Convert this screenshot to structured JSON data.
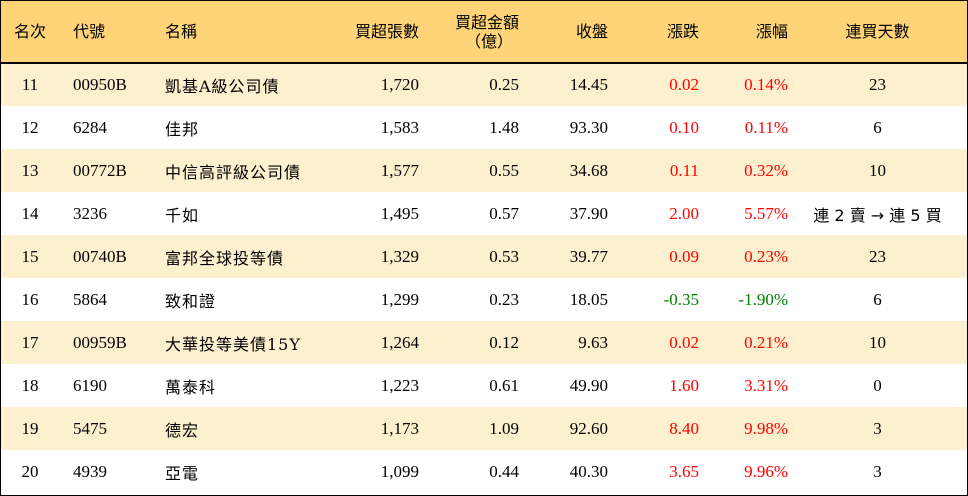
{
  "headers": {
    "rank": "名次",
    "code": "代號",
    "name": "名稱",
    "net_buy_lots": "買超張數",
    "net_buy_amount_line1": "買超金額",
    "net_buy_amount_line2": "（億）",
    "close": "收盤",
    "change": "漲跌",
    "change_pct": "漲幅",
    "consecutive_days": "連買天數"
  },
  "colors": {
    "header_bg": "#FFD478",
    "stripe_bg": "#FDF0CE",
    "up": "#FF0000",
    "down": "#008000"
  },
  "rows": [
    {
      "rank": "11",
      "code": "00950B",
      "name": "凱基A級公司債",
      "lots": "1,720",
      "amount": "0.25",
      "close": "14.45",
      "change": "0.02",
      "pct": "0.14%",
      "days": "23",
      "dir": "up"
    },
    {
      "rank": "12",
      "code": "6284",
      "name": "佳邦",
      "lots": "1,583",
      "amount": "1.48",
      "close": "93.30",
      "change": "0.10",
      "pct": "0.11%",
      "days": "6",
      "dir": "up"
    },
    {
      "rank": "13",
      "code": "00772B",
      "name": "中信高評級公司債",
      "lots": "1,577",
      "amount": "0.55",
      "close": "34.68",
      "change": "0.11",
      "pct": "0.32%",
      "days": "10",
      "dir": "up"
    },
    {
      "rank": "14",
      "code": "3236",
      "name": "千如",
      "lots": "1,495",
      "amount": "0.57",
      "close": "37.90",
      "change": "2.00",
      "pct": "5.57%",
      "days": "連 2 賣 → 連 5 買",
      "dir": "up"
    },
    {
      "rank": "15",
      "code": "00740B",
      "name": "富邦全球投等債",
      "lots": "1,329",
      "amount": "0.53",
      "close": "39.77",
      "change": "0.09",
      "pct": "0.23%",
      "days": "23",
      "dir": "up"
    },
    {
      "rank": "16",
      "code": "5864",
      "name": "致和證",
      "lots": "1,299",
      "amount": "0.23",
      "close": "18.05",
      "change": "-0.35",
      "pct": "-1.90%",
      "days": "6",
      "dir": "down"
    },
    {
      "rank": "17",
      "code": "00959B",
      "name": "大華投等美債15Y",
      "lots": "1,264",
      "amount": "0.12",
      "close": "9.63",
      "change": "0.02",
      "pct": "0.21%",
      "days": "10",
      "dir": "up"
    },
    {
      "rank": "18",
      "code": "6190",
      "name": "萬泰科",
      "lots": "1,223",
      "amount": "0.61",
      "close": "49.90",
      "change": "1.60",
      "pct": "3.31%",
      "days": "0",
      "dir": "up"
    },
    {
      "rank": "19",
      "code": "5475",
      "name": "德宏",
      "lots": "1,173",
      "amount": "1.09",
      "close": "92.60",
      "change": "8.40",
      "pct": "9.98%",
      "days": "3",
      "dir": "up"
    },
    {
      "rank": "20",
      "code": "4939",
      "name": "亞電",
      "lots": "1,099",
      "amount": "0.44",
      "close": "40.30",
      "change": "3.65",
      "pct": "9.96%",
      "days": "3",
      "dir": "up"
    }
  ]
}
